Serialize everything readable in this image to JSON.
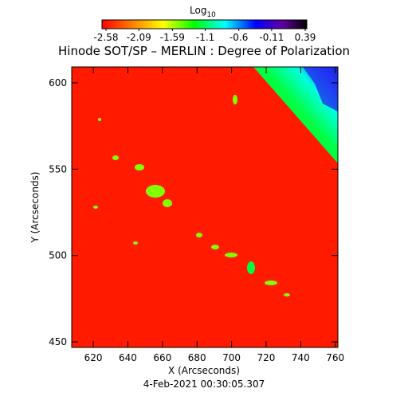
{
  "chart_data": {
    "type": "image",
    "title": "Hinode SOT/SP – MERLIN : Degree of Polarization",
    "x_label": "X (Arcseconds)",
    "y_label": "Y (Arcseconds)",
    "footer": "4-Feb-2021 00:30:05.307",
    "colorbar_label": "Log",
    "colorbar_label_sub": "10",
    "clim": [
      -2.58,
      0.39
    ],
    "cticks": [
      -2.58,
      -2.09,
      -1.59,
      -1.1,
      -0.6,
      -0.11,
      0.39
    ],
    "xlim": [
      607.5,
      761.5
    ],
    "xticks": [
      620,
      640,
      660,
      680,
      700,
      720,
      740,
      760
    ],
    "ylim": [
      446.8,
      609.2
    ],
    "yticks": [
      450,
      500,
      550,
      600
    ]
  }
}
